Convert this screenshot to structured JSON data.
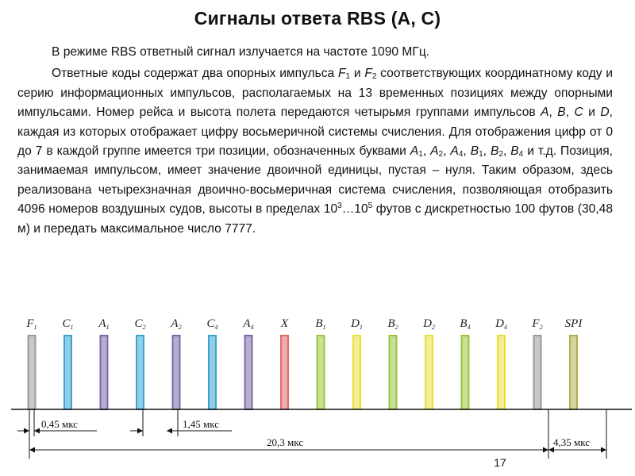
{
  "slide": {
    "title": "Сигналы ответа RBS (A, C)",
    "page_number": "17"
  },
  "paragraph1": "В режиме RBS ответный сигнал излучается на частоте 1090 МГц.",
  "paragraph2": {
    "t1": "Ответные коды содержат два опорных импульса ",
    "f1": "F",
    "f1_sub": "1",
    "t2": " и ",
    "f2": "F",
    "f2_sub": "2",
    "t3": " соответствующих координатному коду и серию информационных импульсов, располагаемых на 13 временных позициях между опорными импульсами. Номер рейса и высота полета передаются четырьмя группами импульсов ",
    "a": "A",
    "t4": ", ",
    "b": "B",
    "t5": ", ",
    "c": "C",
    "t6": " и ",
    "d": "D",
    "t7": ", каждая из которых отображает цифру восьмеричной системы счисления. Для отображения цифр от 0 до 7 в каждой группе имеется три позиции, обозначенных буквами ",
    "a1": "A",
    "a1_sub": "1",
    "t8": ", ",
    "a2": "A",
    "a2_sub": "2",
    "t9": ", ",
    "a4": "A",
    "a4_sub": "4",
    "t10": ", ",
    "b1": "B",
    "b1_sub": "1",
    "t11": ", ",
    "b2": "B",
    "b2_sub": "2",
    "t12": ", ",
    "b4": "B",
    "b4_sub": "4",
    "t13": " и т.д. Позиция, занимаемая импульсом, имеет значение двоичной единицы, пустая – нуля. Таким образом, здесь реализована четырехзначная двоично-восьмеричная система счисления, позволяющая отобразить 4096 номеров воздушных судов, высоты в пределах 10",
    "sup1": "3",
    "t14": "…10",
    "sup2": "5",
    "t15": " футов с дискретностью 100 футов (30,48 м) и передать максимальное число 7777."
  },
  "pulses": [
    {
      "letter": "F",
      "sub": "1",
      "color": "#9a9a9a"
    },
    {
      "letter": "C",
      "sub": "1",
      "color": "#3aa6cf"
    },
    {
      "letter": "A",
      "sub": "1",
      "color": "#7d6aa8"
    },
    {
      "letter": "C",
      "sub": "2",
      "color": "#3aa6cf"
    },
    {
      "letter": "A",
      "sub": "2",
      "color": "#7d6aa8"
    },
    {
      "letter": "C",
      "sub": "4",
      "color": "#3aa6cf"
    },
    {
      "letter": "A",
      "sub": "4",
      "color": "#7d6aa8"
    },
    {
      "letter": "X",
      "sub": "",
      "color": "#e06a6a"
    },
    {
      "letter": "B",
      "sub": "1",
      "color": "#9bc43c"
    },
    {
      "letter": "D",
      "sub": "1",
      "color": "#e6e03a"
    },
    {
      "letter": "B",
      "sub": "2",
      "color": "#9bc43c"
    },
    {
      "letter": "D",
      "sub": "2",
      "color": "#e6e03a"
    },
    {
      "letter": "B",
      "sub": "4",
      "color": "#9bc43c"
    },
    {
      "letter": "D",
      "sub": "4",
      "color": "#e6e03a"
    },
    {
      "letter": "F",
      "sub": "2",
      "color": "#9a9a9a"
    },
    {
      "letter": "SPI",
      "sub": "",
      "color": "#b5b04a"
    }
  ],
  "dimensions": {
    "pulse_width": "0,45 мкс",
    "pulse_spacing": "1,45 мкс",
    "frame_length": "20,3 мкс",
    "spi_offset": "4,35 мкс"
  }
}
